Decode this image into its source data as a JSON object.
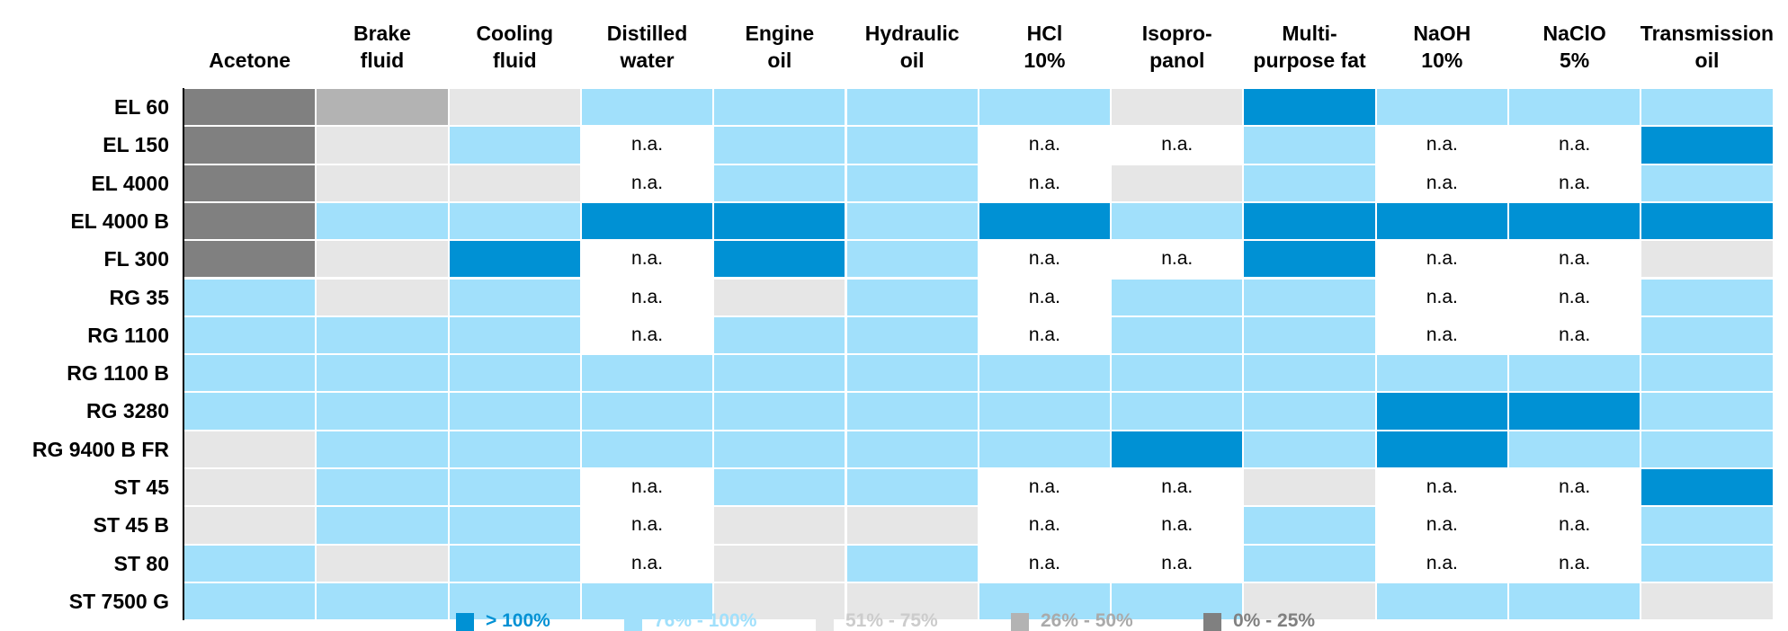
{
  "table": {
    "columns": [
      "Acetone",
      "Brake\nfluid",
      "Cooling\nfluid",
      "Distilled\nwater",
      "Engine\noil",
      "Hydraulic\noil",
      "HCl\n10%",
      "Isopro-\npanol",
      "Multi-\npurpose fat",
      "NaOH\n10%",
      "NaClO\n5%",
      "Transmission\noil"
    ],
    "rows": [
      {
        "label": "EL 60",
        "cells": [
          "0% - 25%",
          "26% - 50%",
          "51% - 75%",
          "76% - 100%",
          "76% - 100%",
          "76% - 100%",
          "76% - 100%",
          "51% - 75%",
          "> 100%",
          "76% - 100%",
          "76% - 100%",
          "76% - 100%"
        ]
      },
      {
        "label": "EL 150",
        "cells": [
          "0% - 25%",
          "51% - 75%",
          "76% - 100%",
          "n.a.",
          "76% - 100%",
          "76% - 100%",
          "n.a.",
          "n.a.",
          "76% - 100%",
          "n.a.",
          "n.a.",
          "> 100%"
        ]
      },
      {
        "label": "EL 4000",
        "cells": [
          "0% - 25%",
          "51% - 75%",
          "51% - 75%",
          "n.a.",
          "76% - 100%",
          "76% - 100%",
          "n.a.",
          "51% - 75%",
          "76% - 100%",
          "n.a.",
          "n.a.",
          "76% - 100%"
        ]
      },
      {
        "label": "EL 4000 B",
        "cells": [
          "0% - 25%",
          "76% - 100%",
          "76% - 100%",
          "> 100%",
          "> 100%",
          "76% - 100%",
          "> 100%",
          "76% - 100%",
          "> 100%",
          "> 100%",
          "> 100%",
          "> 100%"
        ]
      },
      {
        "label": "FL 300",
        "cells": [
          "0% - 25%",
          "51% - 75%",
          "> 100%",
          "n.a.",
          "> 100%",
          "76% - 100%",
          "n.a.",
          "n.a.",
          "> 100%",
          "n.a.",
          "n.a.",
          "51% - 75%"
        ]
      },
      {
        "label": "RG 35",
        "cells": [
          "76% - 100%",
          "51% - 75%",
          "76% - 100%",
          "n.a.",
          "51% - 75%",
          "76% - 100%",
          "n.a.",
          "76% - 100%",
          "76% - 100%",
          "n.a.",
          "n.a.",
          "76% - 100%"
        ]
      },
      {
        "label": "RG 1100",
        "cells": [
          "76% - 100%",
          "76% - 100%",
          "76% - 100%",
          "n.a.",
          "76% - 100%",
          "76% - 100%",
          "n.a.",
          "76% - 100%",
          "76% - 100%",
          "n.a.",
          "n.a.",
          "76% - 100%"
        ]
      },
      {
        "label": "RG 1100 B",
        "cells": [
          "76% - 100%",
          "76% - 100%",
          "76% - 100%",
          "76% - 100%",
          "76% - 100%",
          "76% - 100%",
          "76% - 100%",
          "76% - 100%",
          "76% - 100%",
          "76% - 100%",
          "76% - 100%",
          "76% - 100%"
        ]
      },
      {
        "label": "RG 3280",
        "cells": [
          "76% - 100%",
          "76% - 100%",
          "76% - 100%",
          "76% - 100%",
          "76% - 100%",
          "76% - 100%",
          "76% - 100%",
          "76% - 100%",
          "76% - 100%",
          "> 100%",
          "> 100%",
          "76% - 100%"
        ]
      },
      {
        "label": "RG 9400 B FR",
        "cells": [
          "51% - 75%",
          "76% - 100%",
          "76% - 100%",
          "76% - 100%",
          "76% - 100%",
          "76% - 100%",
          "76% - 100%",
          "> 100%",
          "76% - 100%",
          "> 100%",
          "76% - 100%",
          "76% - 100%"
        ]
      },
      {
        "label": "ST 45",
        "cells": [
          "51% - 75%",
          "76% - 100%",
          "76% - 100%",
          "n.a.",
          "76% - 100%",
          "76% - 100%",
          "n.a.",
          "n.a.",
          "51% - 75%",
          "n.a.",
          "n.a.",
          "> 100%"
        ]
      },
      {
        "label": "ST 45 B",
        "cells": [
          "51% - 75%",
          "76% - 100%",
          "76% - 100%",
          "n.a.",
          "51% - 75%",
          "51% - 75%",
          "n.a.",
          "n.a.",
          "76% - 100%",
          "n.a.",
          "n.a.",
          "76% - 100%"
        ]
      },
      {
        "label": "ST 80",
        "cells": [
          "76% - 100%",
          "51% - 75%",
          "76% - 100%",
          "n.a.",
          "51% - 75%",
          "76% - 100%",
          "n.a.",
          "n.a.",
          "76% - 100%",
          "n.a.",
          "n.a.",
          "76% - 100%"
        ]
      },
      {
        "label": "ST 7500 G",
        "cells": [
          "76% - 100%",
          "76% - 100%",
          "76% - 100%",
          "76% - 100%",
          "51% - 75%",
          "51% - 75%",
          "76% - 100%",
          "76% - 100%",
          "51% - 75%",
          "76% - 100%",
          "76% - 100%",
          "51% - 75%"
        ]
      }
    ]
  },
  "legend": [
    {
      "label": "> 100%",
      "color": "#0091d4",
      "text_color": "#0091d4"
    },
    {
      "label": "76% - 100%",
      "color": "#a1e0fb",
      "text_color": "#a1e0fb"
    },
    {
      "label": "51% - 75%",
      "color": "#e6e6e6",
      "text_color": "#cccccc"
    },
    {
      "label": "26% - 50%",
      "color": "#b3b3b3",
      "text_color": "#aaaaaa"
    },
    {
      "label": "0% - 25%",
      "color": "#808080",
      "text_color": "#808080"
    }
  ]
}
